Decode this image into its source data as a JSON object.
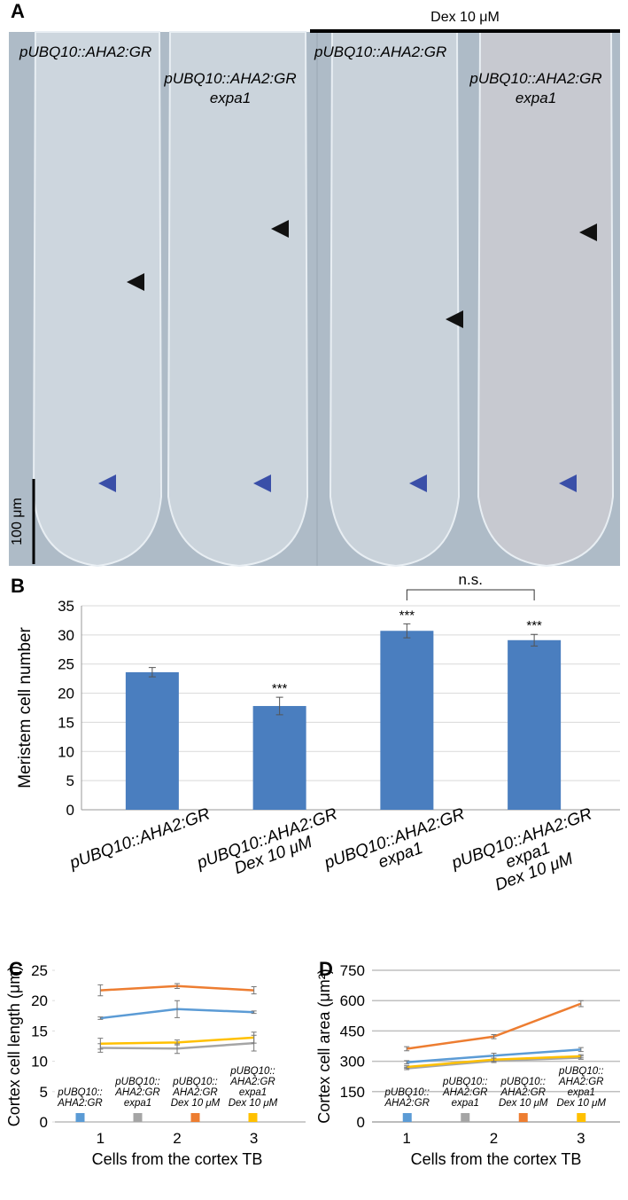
{
  "image_panel": {
    "panel_label": "A",
    "treatment_label": "Dex 10 μM",
    "genotype_labels": [
      "pUBQ10::AHA2:GR",
      "pUBQ10::AHA2:GR\nexpa1",
      "pUBQ10::AHA2:GR",
      "pUBQ10::AHA2:GR\nexpa1"
    ],
    "scale_bar_label": "100 μm"
  },
  "chart_data": [
    {
      "type": "bar",
      "panel_label": "B",
      "y_label": "Meristem cell number",
      "categories": [
        "pUBQ10::AHA2:GR",
        "pUBQ10::AHA2:GR\nDex 10 μM",
        "pUBQ10::AHA2:GR\nexpa1",
        "pUBQ10::AHA2:GR\nexpa1\nDex 10 μM"
      ],
      "values": [
        23.6,
        17.8,
        30.7,
        29.1
      ],
      "errors": [
        0.8,
        1.5,
        1.2,
        1.0
      ],
      "significance": [
        null,
        "***",
        "***",
        "***"
      ],
      "bracket_label": "n.s.",
      "color": "#4a7ebf",
      "ylim": [
        0,
        35
      ],
      "yticks": [
        0,
        5,
        10,
        15,
        20,
        25,
        30,
        35
      ],
      "grid": true
    },
    {
      "type": "line",
      "panel_label": "C",
      "y_label": "Cortex cell length (μm)",
      "x_label": "Cells from the cortex TB",
      "categories": [
        "1",
        "2",
        "3"
      ],
      "series": [
        {
          "name": "pUBQ10::\nAHA2:GR",
          "color": "#5b9bd5",
          "values": [
            17.1,
            18.6,
            18.1
          ],
          "errors": [
            0.2,
            1.4,
            0.2
          ]
        },
        {
          "name": "pUBQ10::\nAHA2:GR\nexpa1",
          "color": "#a5a5a5",
          "values": [
            12.2,
            12.1,
            13.0
          ],
          "errors": [
            0.7,
            0.8,
            1.3
          ]
        },
        {
          "name": "pUBQ10::\nAHA2:GR\nDex 10 μM",
          "color": "#ed7d31",
          "values": [
            21.7,
            22.4,
            21.7
          ],
          "errors": [
            0.9,
            0.4,
            0.6
          ]
        },
        {
          "name": "pUBQ10::\nAHA2:GR\nexpa1\nDex 10 μM",
          "color": "#ffc000",
          "values": [
            12.9,
            13.1,
            13.9
          ],
          "errors": [
            0.9,
            0.4,
            0.9
          ]
        }
      ],
      "ylim": [
        0,
        25
      ],
      "yticks": [
        0,
        5,
        10,
        15,
        20,
        25
      ],
      "grid": false
    },
    {
      "type": "line",
      "panel_label": "D",
      "y_label": "Cortex cell area (μm²)",
      "x_label": "Cells from the cortex TB",
      "categories": [
        "1",
        "2",
        "3"
      ],
      "series": [
        {
          "name": "pUBQ10::\nAHA2:GR",
          "color": "#5b9bd5",
          "values": [
            295,
            328,
            358
          ],
          "errors": [
            8,
            12,
            10
          ]
        },
        {
          "name": "pUBQ10::\nAHA2:GR\nexpa1",
          "color": "#a5a5a5",
          "values": [
            265,
            302,
            318
          ],
          "errors": [
            6,
            8,
            8
          ]
        },
        {
          "name": "pUBQ10::\nAHA2:GR\nDex 10 μM",
          "color": "#ed7d31",
          "values": [
            362,
            422,
            585
          ],
          "errors": [
            10,
            10,
            15
          ]
        },
        {
          "name": "pUBQ10::\nAHA2:GR\nexpa1\nDex 10 μM",
          "color": "#ffc000",
          "values": [
            272,
            308,
            325
          ],
          "errors": [
            6,
            8,
            8
          ]
        }
      ],
      "ylim": [
        0,
        750
      ],
      "yticks": [
        0,
        150,
        300,
        450,
        600,
        750
      ],
      "grid": true
    }
  ]
}
